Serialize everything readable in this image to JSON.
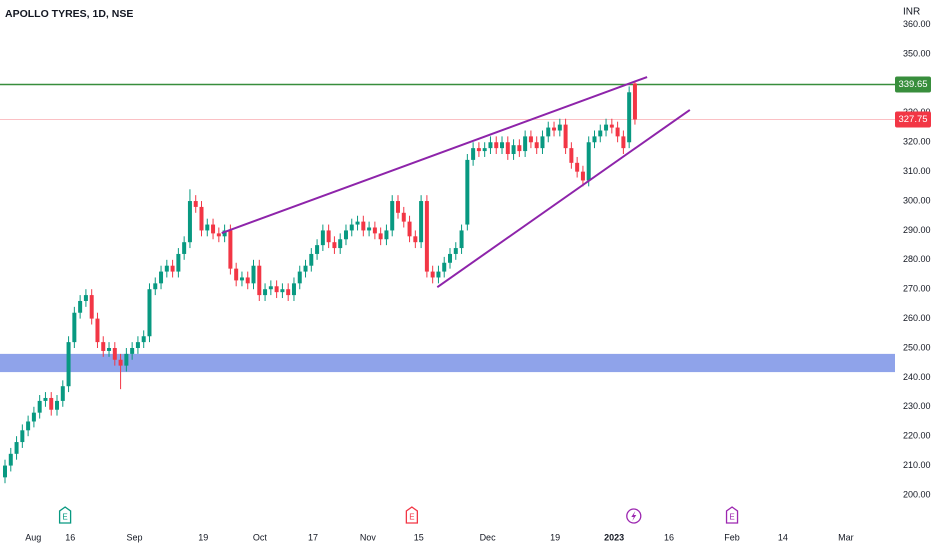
{
  "chart_data": {
    "type": "candlestick",
    "title": "APOLLO TYRES, 1D, NSE",
    "currency": "INR",
    "up_color": "#089981",
    "down_color": "#f23645",
    "open": [
      206,
      210,
      214,
      218,
      222,
      225,
      228,
      232,
      233,
      229,
      232,
      237,
      252,
      262,
      266,
      268,
      260,
      252,
      249,
      250,
      246,
      244,
      248,
      250,
      252,
      254,
      270,
      272,
      276,
      278,
      276,
      282,
      286,
      300,
      298,
      290,
      292,
      289,
      288,
      290,
      277,
      273,
      274,
      272,
      278,
      268,
      270,
      271,
      269,
      270,
      268,
      272,
      276,
      278,
      282,
      285,
      290,
      286,
      284,
      287,
      290,
      292,
      293,
      290,
      291,
      289,
      287,
      290,
      300,
      296,
      293,
      288,
      286,
      300,
      276,
      274,
      276,
      279,
      282,
      284,
      292,
      314,
      318,
      317,
      318,
      320,
      318,
      320,
      316,
      319,
      317,
      322,
      320,
      318,
      322,
      325,
      324,
      326,
      318,
      313,
      310,
      307,
      320,
      322,
      324,
      326,
      325,
      322,
      320,
      340
    ],
    "high": [
      212,
      216,
      220,
      224,
      227,
      230,
      234,
      235,
      235,
      234,
      239,
      254,
      264,
      268,
      270,
      270,
      262,
      254,
      252,
      252,
      248,
      250,
      252,
      254,
      256,
      272,
      274,
      278,
      280,
      280,
      284,
      288,
      304,
      302,
      300,
      294,
      294,
      291,
      292,
      292,
      279,
      276,
      276,
      280,
      280,
      272,
      273,
      273,
      272,
      272,
      274,
      278,
      280,
      284,
      287,
      292,
      292,
      288,
      289,
      292,
      294,
      295,
      295,
      293,
      293,
      291,
      292,
      302,
      302,
      298,
      295,
      290,
      302,
      302,
      278,
      278,
      281,
      284,
      286,
      292,
      316,
      320,
      320,
      320,
      322,
      322,
      322,
      322,
      321,
      321,
      324,
      324,
      322,
      324,
      327,
      327,
      328,
      328,
      320,
      315,
      312,
      322,
      324,
      326,
      328,
      328,
      327,
      324,
      339,
      341
    ],
    "low": [
      204,
      208,
      212,
      216,
      220,
      223,
      226,
      230,
      227,
      227,
      230,
      235,
      250,
      260,
      264,
      258,
      250,
      247,
      247,
      244,
      236,
      242,
      246,
      248,
      250,
      252,
      268,
      270,
      274,
      274,
      274,
      280,
      284,
      296,
      288,
      288,
      287,
      286,
      286,
      275,
      271,
      271,
      270,
      270,
      266,
      266,
      268,
      267,
      267,
      266,
      266,
      270,
      274,
      276,
      280,
      283,
      284,
      282,
      282,
      285,
      288,
      290,
      288,
      288,
      287,
      285,
      285,
      288,
      294,
      291,
      286,
      284,
      284,
      274,
      272,
      272,
      274,
      277,
      280,
      282,
      290,
      312,
      315,
      315,
      316,
      316,
      316,
      314,
      314,
      315,
      315,
      318,
      316,
      316,
      320,
      322,
      322,
      316,
      311,
      308,
      305,
      305,
      318,
      320,
      322,
      323,
      320,
      316,
      318,
      326
    ],
    "close": [
      210,
      214,
      218,
      222,
      225,
      228,
      232,
      233,
      229,
      232,
      237,
      252,
      262,
      266,
      268,
      260,
      252,
      249,
      250,
      246,
      244,
      248,
      250,
      252,
      254,
      270,
      272,
      276,
      278,
      276,
      282,
      286,
      300,
      298,
      290,
      292,
      289,
      288,
      290,
      277,
      273,
      274,
      272,
      278,
      268,
      270,
      271,
      269,
      270,
      268,
      272,
      276,
      278,
      282,
      285,
      290,
      286,
      284,
      287,
      290,
      292,
      293,
      290,
      291,
      289,
      287,
      290,
      300,
      296,
      293,
      288,
      286,
      300,
      276,
      274,
      276,
      279,
      282,
      284,
      290,
      314,
      318,
      317,
      318,
      320,
      318,
      320,
      316,
      319,
      317,
      322,
      320,
      318,
      322,
      325,
      324,
      326,
      318,
      313,
      310,
      307,
      320,
      322,
      324,
      326,
      325,
      322,
      318,
      337,
      327.75
    ],
    "xlim": [
      -0.865,
      160.4
    ],
    "ylim": [
      189.1,
      368.4
    ],
    "yticks": [
      {
        "value": 200,
        "label": "200.00"
      },
      {
        "value": 210,
        "label": "210.00"
      },
      {
        "value": 220,
        "label": "220.00"
      },
      {
        "value": 230,
        "label": "230.00"
      },
      {
        "value": 240,
        "label": "240.00"
      },
      {
        "value": 250,
        "label": "250.00"
      },
      {
        "value": 260,
        "label": "260.00"
      },
      {
        "value": 270,
        "label": "270.00"
      },
      {
        "value": 280,
        "label": "280.00"
      },
      {
        "value": 290,
        "label": "290.00"
      },
      {
        "value": 300,
        "label": "300.00"
      },
      {
        "value": 310,
        "label": "310.00"
      },
      {
        "value": 320,
        "label": "320.00"
      },
      {
        "value": 330,
        "label": "330.00"
      },
      {
        "value": 340,
        "label": "340.00"
      },
      {
        "value": 350,
        "label": "350.00"
      },
      {
        "value": 360,
        "label": "360.00"
      }
    ],
    "xticks": [
      {
        "value": 4.9,
        "label": "Aug"
      },
      {
        "value": 11.3,
        "label": "16"
      },
      {
        "value": 22.4,
        "label": "Sep"
      },
      {
        "value": 34.3,
        "label": "19"
      },
      {
        "value": 44.1,
        "label": "Oct"
      },
      {
        "value": 53.3,
        "label": "17"
      },
      {
        "value": 62.8,
        "label": "Nov"
      },
      {
        "value": 71.6,
        "label": "15"
      },
      {
        "value": 83.5,
        "label": "Dec"
      },
      {
        "value": 95.2,
        "label": "19"
      },
      {
        "value": 105.4,
        "label": "2023",
        "bold": true
      },
      {
        "value": 114.9,
        "label": "16"
      },
      {
        "value": 125.8,
        "label": "Feb"
      },
      {
        "value": 134.6,
        "label": "14"
      },
      {
        "value": 145.5,
        "label": "Mar"
      }
    ],
    "hline": {
      "value": 339.65,
      "color": "#388e3c"
    },
    "zone": {
      "range": [
        241.8,
        248.0
      ],
      "color": "#7b93e6"
    },
    "trendlines": [
      {
        "x": [
          37.5,
          111.1
        ],
        "y": [
          289.1,
          342.2
        ],
        "color": "#8e24aa"
      },
      {
        "x": [
          74.8,
          118.5
        ],
        "y": [
          270.7,
          331.0
        ],
        "color": "#8e24aa"
      }
    ],
    "events": [
      {
        "x": 10.4,
        "label": "E",
        "color": "#089981"
      },
      {
        "x": 70.4,
        "label": "E",
        "color": "#f23645"
      },
      {
        "x": 108.8,
        "icon": "lightning",
        "color": "#9c27b0"
      },
      {
        "x": 125.8,
        "label": "E",
        "color": "#9c27b0"
      }
    ]
  }
}
